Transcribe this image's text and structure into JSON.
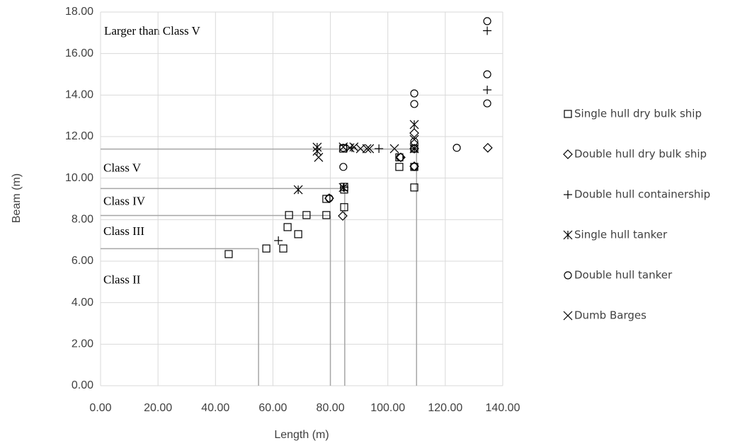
{
  "chart_data": {
    "type": "scatter",
    "xlabel": "Length (m)",
    "ylabel": "Beam (m)",
    "xlim": [
      0,
      140
    ],
    "ylim": [
      0,
      18
    ],
    "xticks": [
      {
        "value": 0,
        "label": "0.00"
      },
      {
        "value": 20,
        "label": "20.00"
      },
      {
        "value": 40,
        "label": "40.00"
      },
      {
        "value": 60,
        "label": "60.00"
      },
      {
        "value": 80,
        "label": "80.00"
      },
      {
        "value": 100,
        "label": "100.00"
      },
      {
        "value": 120,
        "label": "120.00"
      },
      {
        "value": 140,
        "label": "140.00"
      }
    ],
    "yticks": [
      {
        "value": 0,
        "label": "0.00"
      },
      {
        "value": 2,
        "label": "2.00"
      },
      {
        "value": 4,
        "label": "4.00"
      },
      {
        "value": 6,
        "label": "6.00"
      },
      {
        "value": 8,
        "label": "8.00"
      },
      {
        "value": 10,
        "label": "10.00"
      },
      {
        "value": 12,
        "label": "12.00"
      },
      {
        "value": 14,
        "label": "14.00"
      },
      {
        "value": 16,
        "label": "16.00"
      },
      {
        "value": 18,
        "label": "18.00"
      }
    ],
    "grid": true,
    "legend": "right",
    "annotation": "Larger than Class V",
    "class_boundaries": [
      {
        "label": "Class II",
        "length": 55,
        "beam": 6.6
      },
      {
        "label": "Class III",
        "length": 80,
        "beam": 8.2
      },
      {
        "label": "Class IV",
        "length": 85,
        "beam": 9.5
      },
      {
        "label": "Class V",
        "length": 110,
        "beam": 11.4
      }
    ],
    "series": [
      {
        "name": "Single hull dry bulk ship",
        "marker": "square",
        "color": "#000000",
        "x": [
          44.6,
          57.7,
          63.6,
          65.1,
          65.6,
          68.8,
          71.7,
          78.6,
          78.6,
          84.8,
          84.8,
          84.8,
          104,
          104,
          109.2,
          109.2,
          109.2,
          84.5
        ],
        "values": [
          6.34,
          6.61,
          6.61,
          7.64,
          8.22,
          7.3,
          8.22,
          8.22,
          9.0,
          8.6,
          9.58,
          9.45,
          10.54,
          11.0,
          9.55,
          10.54,
          11.42,
          11.42
        ]
      },
      {
        "name": "Double hull dry bulk ship",
        "marker": "diamond",
        "color": "#000000",
        "x": [
          79.6,
          84.3,
          104.5,
          109.2,
          109.2,
          109.2,
          134.8
        ],
        "values": [
          9.03,
          8.18,
          11.0,
          11.42,
          10.57,
          12.17,
          11.46
        ]
      },
      {
        "name": "Double hull containership",
        "marker": "plus",
        "color": "#000000",
        "x": [
          61.9,
          84.8,
          96.9,
          109.2,
          134.6,
          134.6,
          87.5
        ],
        "values": [
          6.99,
          9.55,
          11.42,
          11.42,
          14.25,
          17.1,
          11.46
        ]
      },
      {
        "name": "Single hull tanker",
        "marker": "asterisk",
        "color": "#000000",
        "x": [
          75.4,
          75.4,
          68.8,
          84.5,
          109.2,
          109.2
        ],
        "values": [
          11.49,
          11.3,
          9.44,
          9.55,
          12.58,
          11.42
        ]
      },
      {
        "name": "Double hull tanker",
        "marker": "circle",
        "color": "#000000",
        "x": [
          79.6,
          84.5,
          84.5,
          109.2,
          109.2,
          109.2,
          124,
          134.6,
          134.6,
          134.6,
          104.3,
          109.2
        ],
        "values": [
          9.03,
          10.54,
          11.46,
          14.08,
          13.57,
          10.54,
          11.46,
          13.6,
          15.0,
          17.56,
          11.0,
          11.76
        ]
      },
      {
        "name": "Dumb Barges",
        "marker": "x",
        "color": "#000000",
        "x": [
          75.9,
          84.5,
          86.8,
          88.2,
          90.5,
          92.7,
          93.6,
          102.3,
          109.2
        ],
        "values": [
          11.0,
          11.5,
          11.46,
          11.5,
          11.42,
          11.42,
          11.42,
          11.42,
          11.86
        ]
      }
    ]
  }
}
